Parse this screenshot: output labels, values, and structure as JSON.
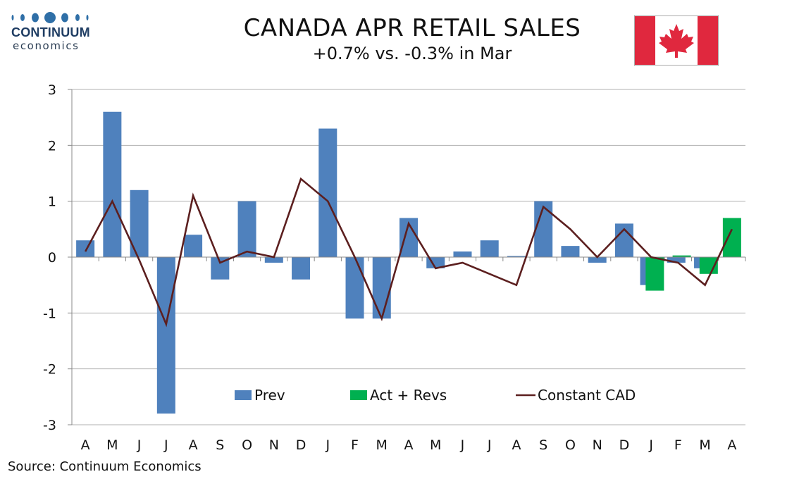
{
  "header": {
    "logo_word": "CONTINUUM",
    "logo_sub": "economics",
    "title": "CANADA APR RETAIL SALES",
    "subtitle": "+0.7% vs. -0.3% in Mar"
  },
  "flag_icon": "canada-flag-icon",
  "source": "Source: Continuum Economics",
  "colors": {
    "prev": "#4f81bd",
    "act": "#00b050",
    "line": "#5c1f1f",
    "grid": "#b0b0b0",
    "flag_red": "#e0283e"
  },
  "chart_data": {
    "type": "bar",
    "categories": [
      "A",
      "M",
      "J",
      "J",
      "A",
      "S",
      "O",
      "N",
      "D",
      "J",
      "F",
      "M",
      "A",
      "M",
      "J",
      "J",
      "A",
      "S",
      "O",
      "N",
      "D",
      "J",
      "F",
      "M",
      "A"
    ],
    "ylim": [
      -3,
      3
    ],
    "yticks": [
      3,
      2,
      1,
      0,
      -1,
      -2,
      -3
    ],
    "grid": true,
    "legend_position": "bottom-center",
    "series": [
      {
        "name": "Prev",
        "kind": "bar",
        "values": [
          0.3,
          2.6,
          1.2,
          -2.8,
          0.4,
          -0.4,
          1.0,
          -0.1,
          -0.4,
          2.3,
          -1.1,
          -1.1,
          0.7,
          -0.2,
          0.1,
          0.3,
          0.02,
          1.0,
          0.2,
          -0.1,
          0.6,
          -0.5,
          -0.1,
          -0.2,
          null
        ]
      },
      {
        "name": "Act + Revs",
        "kind": "bar",
        "values": [
          null,
          null,
          null,
          null,
          null,
          null,
          null,
          null,
          null,
          null,
          null,
          null,
          null,
          null,
          null,
          null,
          null,
          null,
          null,
          null,
          null,
          -0.6,
          0.03,
          -0.3,
          0.7
        ]
      },
      {
        "name": "Constant CAD",
        "kind": "line",
        "values": [
          0.1,
          1.0,
          -0.05,
          -1.2,
          1.1,
          -0.1,
          0.1,
          0.0,
          1.4,
          1.0,
          0.0,
          -1.1,
          0.6,
          -0.2,
          -0.1,
          -0.3,
          -0.5,
          0.9,
          0.5,
          0.0,
          0.5,
          0.0,
          -0.1,
          -0.5,
          0.5
        ]
      }
    ]
  }
}
